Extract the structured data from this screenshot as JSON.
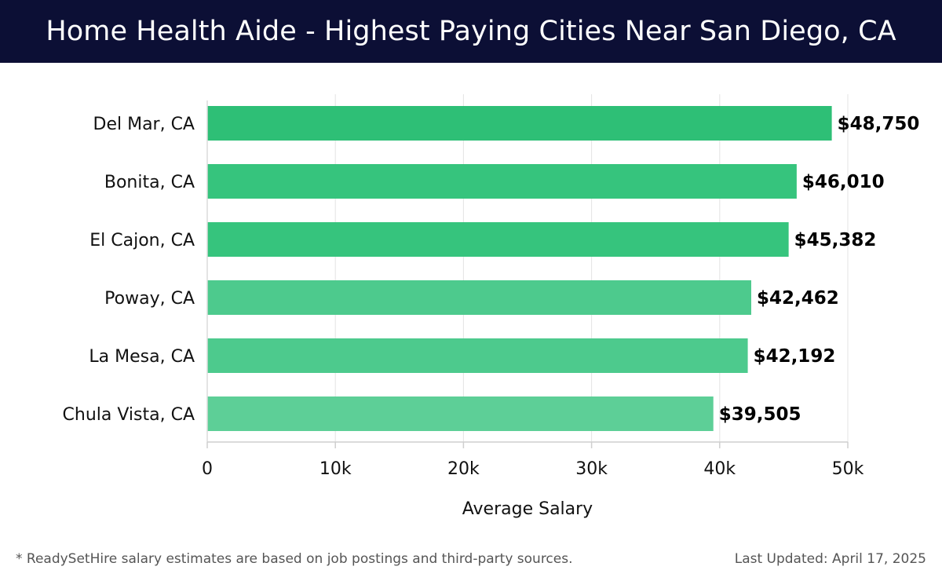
{
  "header": {
    "title": "Home Health Aide - Highest Paying Cities Near San Diego, CA"
  },
  "chart_data": {
    "type": "bar",
    "orientation": "horizontal",
    "categories": [
      "Del Mar, CA",
      "Bonita, CA",
      "El Cajon, CA",
      "Poway, CA",
      "La Mesa, CA",
      "Chula Vista, CA"
    ],
    "values": [
      48750,
      46010,
      45382,
      42462,
      42192,
      39505
    ],
    "value_labels": [
      "$48,750",
      "$46,010",
      "$45,382",
      "$42,462",
      "$42,192",
      "$39,505"
    ],
    "bar_colors": [
      "#2ebf76",
      "#36c47d",
      "#36c47d",
      "#4dca8d",
      "#4dca8d",
      "#5dcf97"
    ],
    "xlabel": "Average Salary",
    "ylabel": "",
    "xlim": [
      0,
      50000
    ],
    "xticks": [
      0,
      10000,
      20000,
      30000,
      40000,
      50000
    ],
    "xtick_labels": [
      "0",
      "10k",
      "20k",
      "30k",
      "40k",
      "50k"
    ],
    "grid": true
  },
  "footer": {
    "note": "* ReadySetHire salary estimates are based on job postings and third-party sources.",
    "updated": "Last Updated: April 17, 2025"
  }
}
